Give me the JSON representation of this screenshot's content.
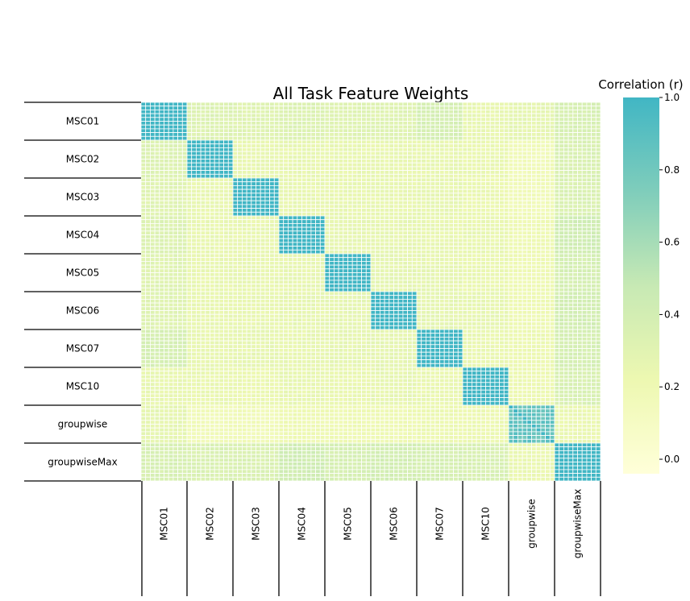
{
  "chart_data": {
    "type": "heatmap",
    "title": "All Task Feature Weights",
    "row_labels": [
      "MSC01",
      "MSC02",
      "MSC03",
      "MSC04",
      "MSC05",
      "MSC06",
      "MSC07",
      "MSC10",
      "groupwise",
      "groupwiseMax"
    ],
    "col_labels": [
      "MSC01",
      "MSC02",
      "MSC03",
      "MSC04",
      "MSC05",
      "MSC06",
      "MSC07",
      "MSC10",
      "groupwise",
      "groupwiseMax"
    ],
    "subcells_per_block": 10,
    "block_values": [
      [
        1.0,
        0.33,
        0.31,
        0.33,
        0.31,
        0.31,
        0.38,
        0.25,
        0.27,
        0.37
      ],
      [
        0.33,
        1.0,
        0.25,
        0.25,
        0.25,
        0.25,
        0.25,
        0.24,
        0.17,
        0.35
      ],
      [
        0.31,
        0.25,
        1.0,
        0.25,
        0.25,
        0.25,
        0.26,
        0.23,
        0.17,
        0.35
      ],
      [
        0.33,
        0.25,
        0.25,
        1.0,
        0.26,
        0.26,
        0.25,
        0.25,
        0.2,
        0.42
      ],
      [
        0.31,
        0.25,
        0.25,
        0.26,
        1.0,
        0.27,
        0.26,
        0.24,
        0.2,
        0.38
      ],
      [
        0.31,
        0.25,
        0.25,
        0.26,
        0.27,
        1.0,
        0.27,
        0.26,
        0.2,
        0.4
      ],
      [
        0.38,
        0.25,
        0.26,
        0.25,
        0.26,
        0.27,
        1.0,
        0.24,
        0.22,
        0.38
      ],
      [
        0.25,
        0.24,
        0.23,
        0.25,
        0.24,
        0.26,
        0.24,
        1.0,
        0.22,
        0.36
      ],
      [
        0.27,
        0.17,
        0.17,
        0.2,
        0.2,
        0.2,
        0.22,
        0.22,
        0.85,
        0.24
      ],
      [
        0.37,
        0.35,
        0.35,
        0.42,
        0.38,
        0.4,
        0.38,
        0.36,
        0.24,
        1.0
      ]
    ],
    "colorbar": {
      "label": "Correlation (r)",
      "range": [
        -0.04,
        1.0
      ],
      "ticks": [
        "1.0",
        "0.8",
        "0.6",
        "0.4",
        "0.2",
        "0.0"
      ],
      "tick_values": [
        1.0,
        0.8,
        0.6,
        0.4,
        0.2,
        0.0
      ],
      "colors": [
        "#ffffd9",
        "#edf8b1",
        "#c7e9b4",
        "#7fcdbb",
        "#41b6c4"
      ]
    },
    "grid": true
  }
}
